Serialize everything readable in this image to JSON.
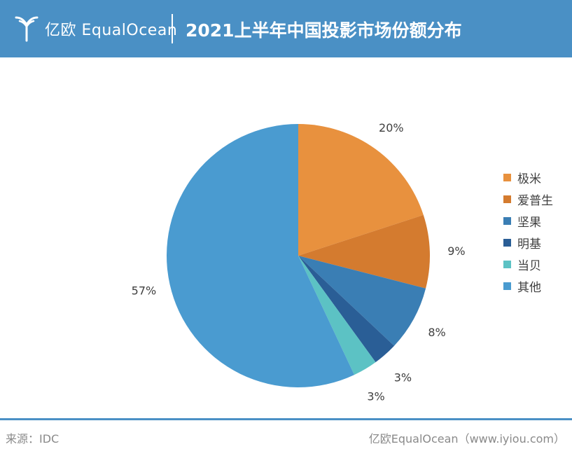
{
  "header": {
    "brand": "亿欧 EqualOcean",
    "title": "2021上半年中国投影市场份额分布"
  },
  "chart_data": {
    "type": "pie",
    "title": "2021上半年中国投影市场份额分布",
    "start_angle_deg": 0,
    "direction": "clockwise",
    "legend_position": "right",
    "slices": [
      {
        "label": "极米",
        "value": 20,
        "display": "20%",
        "color": "#e8913e"
      },
      {
        "label": "爱普生",
        "value": 9,
        "display": "9%",
        "color": "#d47b2f"
      },
      {
        "label": "坚果",
        "value": 8,
        "display": "8%",
        "color": "#3a7eb4"
      },
      {
        "label": "明基",
        "value": 3,
        "display": "3%",
        "color": "#2a5e96"
      },
      {
        "label": "当贝",
        "value": 3,
        "display": "3%",
        "color": "#5cc2c4"
      },
      {
        "label": "其他",
        "value": 57,
        "display": "57%",
        "color": "#4a9bd0"
      }
    ]
  },
  "footer": {
    "source": "来源：IDC",
    "credit": "亿欧EqualOcean（www.iyiou.com）"
  },
  "colors": {
    "header_bg": "#4a90c5",
    "footer_line": "#4a90c5"
  }
}
